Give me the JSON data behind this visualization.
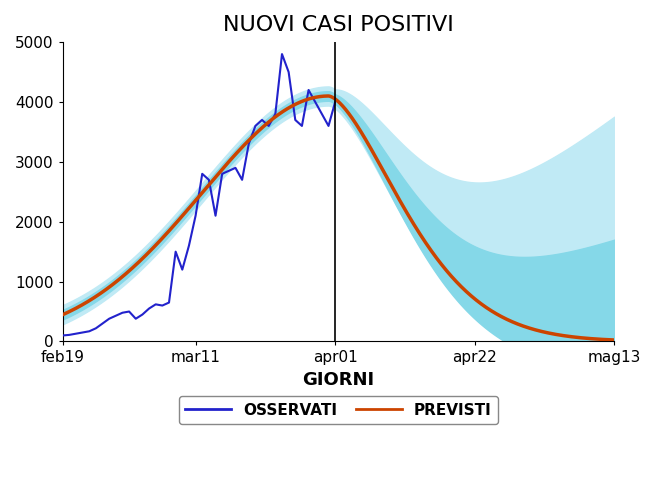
{
  "title": "NUOVI CASI POSITIVI",
  "xlabel": "GIORNI",
  "ylabel": "",
  "xlim_start": 0,
  "xlim_end": 83,
  "ylim": [
    0,
    5000
  ],
  "yticks": [
    0,
    1000,
    2000,
    3000,
    4000,
    5000
  ],
  "xtick_positions": [
    0,
    20,
    41,
    62,
    83
  ],
  "xtick_labels": [
    "feb19",
    "mar11",
    "apr01",
    "apr22",
    "mag13"
  ],
  "vline_x": 41,
  "color_observed": "#2222cc",
  "color_predicted": "#cc4400",
  "color_ci_inner": "#85d8e8",
  "color_ci_outer": "#c0eaf5",
  "legend_labels": [
    "OSSERVATI",
    "PREVISTI"
  ],
  "background_color": "#ffffff"
}
